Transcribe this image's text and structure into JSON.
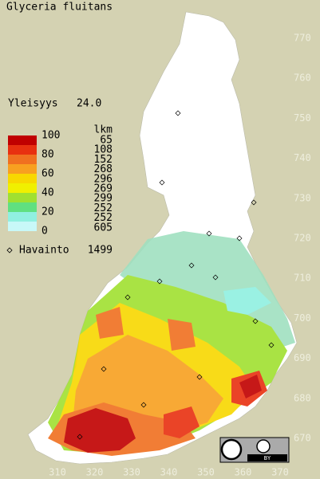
{
  "title": "Glyceria fluitans",
  "frequency": {
    "label": "Yleisyys",
    "value": "24.0"
  },
  "legend": {
    "scale": [
      100,
      80,
      60,
      40,
      20,
      0
    ],
    "colors": [
      "#c00000",
      "#e83010",
      "#f07020",
      "#f8a020",
      "#f8d800",
      "#f0f000",
      "#a0e030",
      "#60e080",
      "#90f0e0",
      "#c8f8f8"
    ],
    "count_header": "lkm",
    "counts": [
      65,
      108,
      152,
      268,
      296,
      269,
      299,
      252,
      252,
      605
    ]
  },
  "observations": {
    "label": "Havainto",
    "count": 1499
  },
  "y_axis_labels": [
    770,
    760,
    750,
    740,
    730,
    720,
    710,
    700,
    690,
    680,
    670
  ],
  "x_axis_labels": [
    310,
    320,
    330,
    340,
    350,
    360,
    370
  ],
  "license": "BY"
}
